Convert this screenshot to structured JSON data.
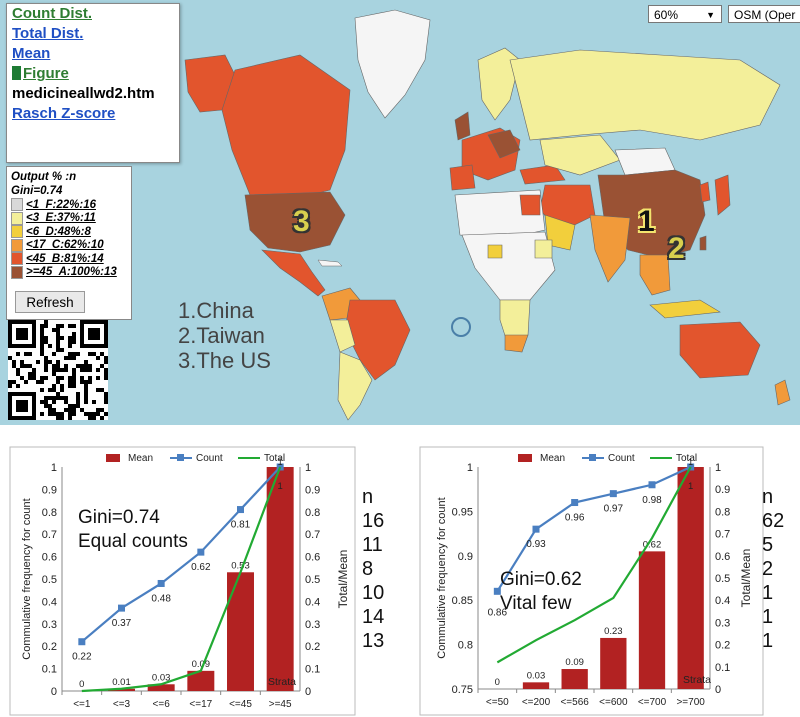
{
  "menu": {
    "count_dist": "Count Dist.",
    "total_dist": "Total Dist.",
    "mean": "Mean",
    "figure": "Figure",
    "file_name": "medicineallwd2.htm",
    "rasch": "Rasch Z-score"
  },
  "legend": {
    "output_line": "Output % :n",
    "gini_line": "Gini=0.74",
    "items": [
      {
        "label": "<1_F:22%:16",
        "color": "#d9d9d9"
      },
      {
        "label": "<3_E:37%:11",
        "color": "#f3ef9a"
      },
      {
        "label": "<6_D:48%:8",
        "color": "#f2cf3c"
      },
      {
        "label": "<17_C:62%:10",
        "color": "#f19a3a"
      },
      {
        "label": "<45_B:81%:14",
        "color": "#e2552d"
      },
      {
        "label": ">=45_A:100%:13",
        "color": "#9a5234"
      }
    ],
    "refresh": "Refresh"
  },
  "map_controls": {
    "zoom": "60%",
    "layer": "OSM (Oper"
  },
  "ranking": {
    "line1": "1.China",
    "line2": "2.Taiwan",
    "line3": "3.The US"
  },
  "markers": {
    "m1": "1",
    "m2": "2",
    "m3": "3"
  },
  "chart_data": [
    {
      "type": "bar",
      "categories": [
        "<=1",
        "<=3",
        "<=6",
        "<=17",
        "<=45",
        ">=45"
      ],
      "series": [
        {
          "name": "Mean",
          "type": "bar",
          "axis": "right",
          "values": [
            0,
            0.01,
            0.03,
            0.09,
            0.53,
            1
          ],
          "color": "#b22222"
        },
        {
          "name": "Count",
          "type": "line",
          "axis": "left",
          "values": [
            0.22,
            0.37,
            0.48,
            0.62,
            0.81,
            1
          ],
          "color": "#4a7fc1"
        },
        {
          "name": "Total",
          "type": "line",
          "axis": "left",
          "values": [
            0,
            0.01,
            0.03,
            0.09,
            0.53,
            1
          ],
          "color": "#22aa33"
        }
      ],
      "value_labels": [
        "0.22",
        "0.37",
        "0.48",
        "0.62",
        "0.81",
        "1"
      ],
      "bar_labels": [
        "0",
        "0.01",
        "0.03",
        "0.09",
        "0.53",
        "1"
      ],
      "ylabel": "Commulative frequency for count",
      "ylabel_right": "Total/Mean",
      "ylim": [
        0,
        1
      ],
      "yticks": [
        "0",
        "0.1",
        "0.2",
        "0.3",
        "0.4",
        "0.5",
        "0.6",
        "0.7",
        "0.8",
        "0.9",
        "1"
      ],
      "annotation": [
        "Gini=0.74",
        "Equal counts"
      ],
      "strata_label": "Strata",
      "n_header": "n",
      "n_values": [
        "16",
        "11",
        "8",
        "10",
        "14",
        "13"
      ],
      "legend_position": "top"
    },
    {
      "type": "bar",
      "categories": [
        "<=50",
        "<=200",
        "<=566",
        "<=600",
        "<=700",
        ">=700"
      ],
      "series": [
        {
          "name": "Mean",
          "type": "bar",
          "axis": "right",
          "values": [
            0,
            0.03,
            0.09,
            0.23,
            0.62,
            1
          ],
          "color": "#b22222"
        },
        {
          "name": "Count",
          "type": "line",
          "axis": "left",
          "values": [
            0.86,
            0.93,
            0.96,
            0.97,
            0.98,
            1
          ],
          "color": "#4a7fc1"
        },
        {
          "name": "Total",
          "type": "line",
          "axis": "right",
          "values": [
            0.12,
            0.22,
            0.31,
            0.41,
            0.68,
            1
          ],
          "color": "#22aa33"
        }
      ],
      "value_labels": [
        "0.86",
        "0.93",
        "0.96",
        "0.97",
        "0.98",
        "1"
      ],
      "bar_labels": [
        "0",
        "0.03",
        "0.09",
        "0.23",
        "0.62",
        "1"
      ],
      "ylabel": "Commulative frequency for count",
      "ylabel_right": "Total/Mean",
      "ylim": [
        0.75,
        1
      ],
      "ylim_right": [
        0,
        1
      ],
      "yticks": [
        "0.75",
        "0.8",
        "0.85",
        "0.9",
        "0.95",
        "1"
      ],
      "yticks_right": [
        "0",
        "0.1",
        "0.2",
        "0.3",
        "0.4",
        "0.5",
        "0.6",
        "0.7",
        "0.8",
        "0.9",
        "1"
      ],
      "annotation": [
        "Gini=0.62",
        "Vital few"
      ],
      "strata_label": "Strata",
      "n_header": "n",
      "n_values": [
        "62",
        "5",
        "2",
        "1",
        "1",
        "1"
      ],
      "legend_position": "top"
    }
  ]
}
